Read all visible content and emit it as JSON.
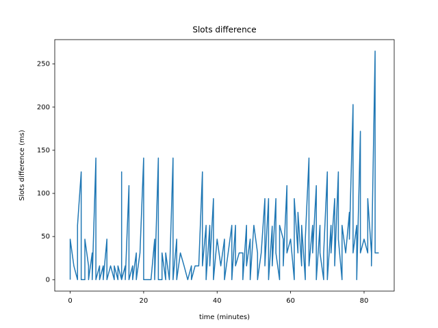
{
  "chart_data": {
    "type": "line",
    "title": "Slots difference",
    "xlabel": "time (minutes)",
    "ylabel": "Slots difference (ms)",
    "x": [
      0,
      0,
      1,
      2,
      2,
      3,
      3,
      4,
      4,
      5,
      5,
      6,
      6,
      7,
      7,
      8,
      8,
      9,
      9,
      10,
      10,
      11,
      12,
      12,
      13,
      13,
      14,
      14,
      14,
      15,
      15,
      16,
      16,
      17,
      17,
      18,
      18,
      19,
      20,
      20,
      21,
      22,
      23,
      23,
      24,
      24,
      25,
      25,
      26,
      26,
      27,
      28,
      28,
      29,
      29,
      30,
      31,
      32,
      33,
      33,
      34,
      35,
      36,
      36,
      37,
      37,
      38,
      38,
      39,
      39,
      40,
      41,
      42,
      42,
      43,
      44,
      44,
      45,
      45,
      46,
      47,
      47,
      48,
      48,
      49,
      49,
      50,
      51,
      51,
      52,
      53,
      53,
      54,
      54,
      55,
      55,
      56,
      56,
      57,
      57,
      58,
      58,
      59,
      59,
      60,
      61,
      61,
      62,
      62,
      63,
      63,
      64,
      64,
      65,
      65,
      66,
      66,
      67,
      67,
      68,
      68,
      69,
      69,
      70,
      70,
      71,
      71,
      72,
      72,
      73,
      73,
      74,
      74,
      75,
      76,
      76,
      77,
      77,
      78,
      78,
      79,
      79,
      80,
      81,
      81,
      82,
      82,
      83,
      83,
      84
    ],
    "series": [
      {
        "color": "#1f77b4",
        "values": [
          0,
          47,
          16,
          0,
          63,
          125,
          0,
          0,
          47,
          16,
          0,
          31,
          0,
          141,
          0,
          16,
          0,
          16,
          0,
          47,
          0,
          16,
          0,
          16,
          0,
          16,
          0,
          125,
          0,
          16,
          0,
          109,
          0,
          16,
          0,
          31,
          0,
          31,
          141,
          0,
          0,
          0,
          47,
          0,
          141,
          0,
          0,
          31,
          0,
          31,
          0,
          141,
          0,
          47,
          0,
          31,
          16,
          0,
          16,
          0,
          16,
          16,
          125,
          16,
          63,
          0,
          63,
          16,
          94,
          0,
          47,
          16,
          47,
          0,
          31,
          63,
          0,
          63,
          16,
          31,
          31,
          0,
          63,
          16,
          47,
          0,
          63,
          31,
          0,
          31,
          94,
          16,
          94,
          0,
          62,
          16,
          94,
          31,
          0,
          63,
          47,
          16,
          109,
          31,
          47,
          0,
          94,
          31,
          78,
          16,
          63,
          0,
          47,
          141,
          16,
          63,
          31,
          109,
          0,
          63,
          31,
          0,
          31,
          125,
          0,
          63,
          31,
          94,
          16,
          125,
          47,
          0,
          63,
          31,
          78,
          47,
          203,
          31,
          63,
          0,
          172,
          31,
          47,
          31,
          94,
          31,
          16,
          265,
          31,
          31
        ]
      }
    ],
    "xlim": [
      -4.2,
      88.2
    ],
    "ylim": [
      -13.25,
      278.25
    ],
    "xticks": [
      0,
      20,
      40,
      60,
      80
    ],
    "yticks": [
      0,
      50,
      100,
      150,
      200,
      250
    ]
  }
}
